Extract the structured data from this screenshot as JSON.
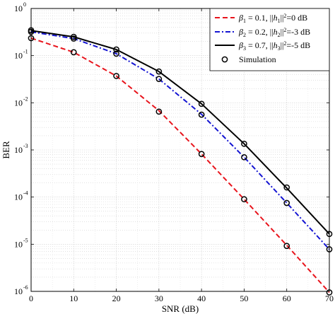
{
  "chart_data": {
    "type": "line",
    "xlabel": "SNR (dB)",
    "ylabel": "BER",
    "xlim": [
      0,
      70
    ],
    "ylim": [
      1e-06,
      1
    ],
    "yscale": "log",
    "grid": true,
    "legend_position": "top-right",
    "x_ticks": [
      0,
      10,
      20,
      30,
      40,
      50,
      60,
      70
    ],
    "x_tick_labels": [
      "0",
      "10",
      "20",
      "30",
      "40",
      "50",
      "60",
      "70"
    ],
    "y_ticks": [
      1,
      0.1,
      0.01,
      0.001,
      0.0001,
      1e-05,
      1e-06
    ],
    "y_tick_labels": [
      {
        "base": "10",
        "exp": "0"
      },
      {
        "base": "10",
        "exp": "-1"
      },
      {
        "base": "10",
        "exp": "-2"
      },
      {
        "base": "10",
        "exp": "-3"
      },
      {
        "base": "10",
        "exp": "-4"
      },
      {
        "base": "10",
        "exp": "-5"
      },
      {
        "base": "10",
        "exp": "-6"
      }
    ],
    "series": [
      {
        "legend": {
          "beta": "β",
          "beta_sub": "1",
          "beta_val": " = 0.1, ||",
          "h": "h",
          "h_sub": "1",
          "tail_sup": "2",
          "tail": "=0 dB"
        },
        "color": "#e8141c",
        "style": "dashed",
        "x": [
          0,
          10,
          20,
          30,
          40,
          50,
          60,
          70
        ],
        "y": [
          0.235,
          0.118,
          0.037,
          0.0068,
          0.00082,
          9e-05,
          9.5e-06,
          9.5e-07
        ]
      },
      {
        "legend": {
          "beta": "β",
          "beta_sub": "2",
          "beta_val": " = 0.2, ||",
          "h": "h",
          "h_sub": "2",
          "tail_sup": "2",
          "tail": "=-3 dB"
        },
        "color": "#1414d2",
        "style": "dashdot",
        "x": [
          0,
          10,
          20,
          30,
          40,
          50,
          60,
          70
        ],
        "y": [
          0.32,
          0.23,
          0.11,
          0.032,
          0.0057,
          0.0007,
          7.5e-05,
          7.8e-06
        ]
      },
      {
        "legend": {
          "beta": "β",
          "beta_sub": "3",
          "beta_val": " = 0.7, ||",
          "h": "h",
          "h_sub": "3",
          "tail_sup": "2",
          "tail": "=-5 dB"
        },
        "color": "#000000",
        "style": "solid",
        "x": [
          0,
          10,
          20,
          30,
          40,
          50,
          60,
          70
        ],
        "y": [
          0.34,
          0.25,
          0.135,
          0.046,
          0.0095,
          0.00135,
          0.000155,
          1.65e-05
        ]
      }
    ],
    "simulation": {
      "legend": "Simulation",
      "x": [
        0,
        10,
        20,
        30,
        40,
        50,
        60,
        70,
        0,
        10,
        20,
        30,
        40,
        50,
        60,
        70,
        0,
        10,
        20,
        30,
        40,
        50,
        60,
        70
      ],
      "y": [
        0.235,
        0.118,
        0.037,
        0.0065,
        0.00082,
        9e-05,
        9.2e-06,
        9.5e-07,
        0.32,
        0.23,
        0.11,
        0.032,
        0.0056,
        0.0007,
        7.5e-05,
        7.8e-06,
        0.345,
        0.25,
        0.135,
        0.046,
        0.0095,
        0.00135,
        0.00016,
        1.65e-05
      ]
    }
  }
}
